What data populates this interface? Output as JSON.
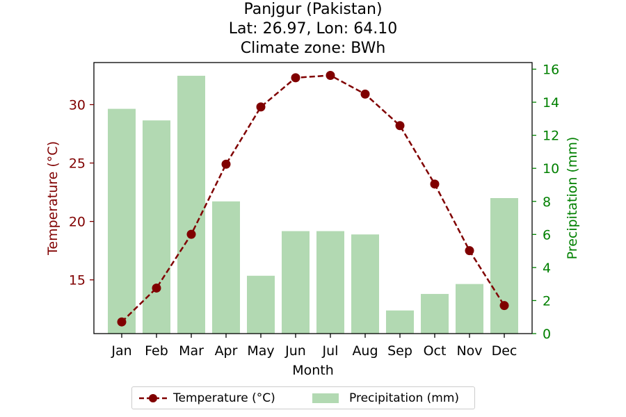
{
  "title_lines": [
    "Panjgur (Pakistan)",
    "Lat: 26.97, Lon: 64.10",
    "Climate zone: BWh"
  ],
  "chart_data": {
    "type": "bar+line",
    "categories": [
      "Jan",
      "Feb",
      "Mar",
      "Apr",
      "May",
      "Jun",
      "Jul",
      "Aug",
      "Sep",
      "Oct",
      "Nov",
      "Dec"
    ],
    "xlabel": "Month",
    "series": [
      {
        "name": "Temperature (°C)",
        "type": "line",
        "axis": "left",
        "color": "#800000",
        "style": "dashed",
        "marker": "circle",
        "values": [
          11.4,
          14.3,
          18.9,
          24.9,
          29.8,
          32.3,
          32.5,
          30.9,
          28.2,
          23.2,
          17.5,
          12.8
        ]
      },
      {
        "name": "Precipitation (mm)",
        "type": "bar",
        "axis": "right",
        "color": "#b2d9b2",
        "values": [
          13.6,
          12.9,
          15.6,
          8.0,
          3.5,
          6.2,
          6.2,
          6.0,
          1.4,
          2.4,
          3.0,
          8.2
        ]
      }
    ],
    "y_left": {
      "label": "Temperature (°C)",
      "ylim": [
        10.4,
        33.6
      ],
      "ticks": [
        15,
        20,
        25,
        30
      ],
      "color": "#800000"
    },
    "y_right": {
      "label": "Precipitation (mm)",
      "ylim": [
        0,
        16.4
      ],
      "ticks": [
        0,
        2,
        4,
        6,
        8,
        10,
        12,
        14,
        16
      ],
      "color": "#008000"
    },
    "grid": false,
    "legend": {
      "placement": "bottom-center",
      "entries": [
        "Temperature (°C)",
        "Precipitation (mm)"
      ]
    }
  }
}
